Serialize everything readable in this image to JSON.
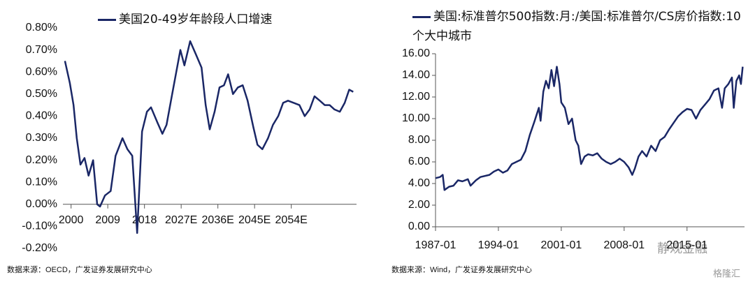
{
  "chart_data": [
    {
      "type": "line",
      "series": [
        {
          "name": "美国20-49岁年龄段人口增速",
          "color": "#1a2766",
          "x": [
            1998.5,
            1999.7,
            2000.6,
            2001.4,
            2002.3,
            2003.3,
            2004.3,
            2005.4,
            2006.4,
            2007.1,
            2008.3,
            2009.7,
            2010.9,
            2012.6,
            2013.8,
            2015.0,
            2016.2,
            2017.4,
            2018.6,
            2019.6,
            2021.2,
            2022.4,
            2023.4,
            2024.8,
            2026.8,
            2027.8,
            2029.2,
            2030.6,
            2032.0,
            2033.0,
            2034.0,
            2035.2,
            2036.4,
            2037.5,
            2038.5,
            2039.7,
            2040.9,
            2042.1,
            2043.3,
            2044.7,
            2045.7,
            2046.9,
            2048.3,
            2049.5,
            2050.8,
            2052.0,
            2053.2,
            2054.6,
            2056.0,
            2057.3,
            2058.5,
            2059.7,
            2061.0,
            2062.2,
            2063.4,
            2064.6,
            2065.9,
            2067.1,
            2068.2,
            2069.2
          ],
          "values": [
            0.65,
            0.55,
            0.45,
            0.3,
            0.18,
            0.21,
            0.13,
            0.2,
            0.0,
            -0.01,
            0.04,
            0.06,
            0.22,
            0.3,
            0.25,
            0.22,
            -0.13,
            0.33,
            0.42,
            0.44,
            0.37,
            0.32,
            0.36,
            0.5,
            0.7,
            0.63,
            0.74,
            0.68,
            0.62,
            0.45,
            0.34,
            0.42,
            0.53,
            0.54,
            0.59,
            0.5,
            0.53,
            0.54,
            0.47,
            0.35,
            0.27,
            0.25,
            0.3,
            0.36,
            0.4,
            0.46,
            0.47,
            0.46,
            0.45,
            0.4,
            0.43,
            0.49,
            0.47,
            0.45,
            0.45,
            0.43,
            0.42,
            0.46,
            0.52,
            0.51
          ]
        }
      ],
      "xlim": [
        1998,
        2070
      ],
      "xticks": [
        2000,
        2009,
        2018,
        {
          "value": 2027,
          "label": "2027E"
        },
        {
          "value": 2036,
          "label": "2036E"
        },
        {
          "value": 2045,
          "label": "2045E"
        },
        {
          "value": 2054,
          "label": "2054E"
        }
      ],
      "ylim": [
        -0.2,
        0.8
      ],
      "yticks": [
        {
          "value": -0.2,
          "label": "-0.20%"
        },
        {
          "value": -0.1,
          "label": "-0.10%"
        },
        {
          "value": 0,
          "label": "0.00%"
        },
        {
          "value": 0.1,
          "label": "0.10%"
        },
        {
          "value": 0.2,
          "label": "0.20%"
        },
        {
          "value": 0.3,
          "label": "0.30%"
        },
        {
          "value": 0.4,
          "label": "0.40%"
        },
        {
          "value": 0.5,
          "label": "0.50%"
        },
        {
          "value": 0.6,
          "label": "0.60%"
        },
        {
          "value": 0.7,
          "label": "0.70%"
        },
        {
          "value": 0.8,
          "label": "0.80%"
        }
      ],
      "source": "数据来源：OECD，广发证券发展研究中心"
    },
    {
      "type": "line",
      "series": [
        {
          "name": "美国:标准普尔500指数:月:/美国:标准普尔/CS房价指数:10个大中城市",
          "color": "#1a2766",
          "x": [
            1987.0,
            1987.5,
            1987.8,
            1988.0,
            1988.5,
            1989.0,
            1989.5,
            1990.0,
            1990.6,
            1990.9,
            1991.5,
            1992.0,
            1993.0,
            1993.5,
            1994.0,
            1994.5,
            1995.0,
            1995.5,
            1996.0,
            1996.5,
            1997.0,
            1997.5,
            1998.0,
            1998.5,
            1998.7,
            1999.0,
            1999.3,
            1999.6,
            1999.9,
            2000.2,
            2000.5,
            2000.8,
            2001.0,
            2001.4,
            2001.8,
            2002.2,
            2002.6,
            2002.9,
            2003.2,
            2003.6,
            2004.0,
            2004.5,
            2005.0,
            2005.5,
            2006.0,
            2006.5,
            2007.0,
            2007.5,
            2008.0,
            2008.5,
            2008.9,
            2009.2,
            2009.6,
            2010.0,
            2010.5,
            2011.0,
            2011.5,
            2012.0,
            2012.5,
            2013.0,
            2013.5,
            2014.0,
            2014.5,
            2015.0,
            2015.5,
            2016.0,
            2016.5,
            2017.0,
            2017.5,
            2018.0,
            2018.5,
            2018.9,
            2019.2,
            2019.6,
            2020.0,
            2020.2,
            2020.5,
            2020.8,
            2021.0,
            2021.2
          ],
          "values": [
            4.5,
            4.6,
            4.8,
            3.4,
            3.7,
            3.8,
            4.3,
            4.2,
            4.4,
            3.8,
            4.3,
            4.6,
            4.8,
            5.1,
            5.3,
            5.0,
            5.2,
            5.8,
            6.0,
            6.2,
            7.0,
            8.5,
            9.7,
            11.0,
            9.8,
            12.5,
            13.5,
            12.8,
            14.5,
            13.0,
            14.8,
            13.2,
            11.5,
            11.0,
            9.5,
            10.0,
            8.0,
            7.5,
            5.8,
            6.5,
            6.7,
            6.6,
            6.8,
            6.3,
            6.0,
            5.8,
            6.0,
            6.3,
            6.0,
            5.5,
            4.8,
            5.4,
            6.5,
            7.0,
            6.5,
            7.5,
            7.0,
            8.0,
            8.3,
            9.0,
            9.6,
            10.2,
            10.6,
            10.9,
            10.8,
            10.0,
            10.8,
            11.3,
            11.8,
            12.6,
            12.8,
            11.0,
            12.8,
            13.2,
            13.8,
            11.0,
            13.5,
            14.0,
            13.2,
            14.8
          ]
        }
      ],
      "xlim": [
        1987,
        2021.4
      ],
      "xticks": [
        {
          "value": 1987,
          "label": "1987-01"
        },
        {
          "value": 1994,
          "label": "1994-01"
        },
        {
          "value": 2001,
          "label": "2001-01"
        },
        {
          "value": 2008,
          "label": "2008-01"
        },
        {
          "value": 2015,
          "label": "2015-01"
        }
      ],
      "ylim": [
        0,
        16
      ],
      "yticks": [
        {
          "value": 0,
          "label": "0.00"
        },
        {
          "value": 2,
          "label": "2.00"
        },
        {
          "value": 4,
          "label": "4.00"
        },
        {
          "value": 6,
          "label": "6.00"
        },
        {
          "value": 8,
          "label": "8.00"
        },
        {
          "value": 10,
          "label": "10.00"
        },
        {
          "value": 12,
          "label": "12.00"
        },
        {
          "value": 14,
          "label": "14.00"
        },
        {
          "value": 16,
          "label": "16.00"
        }
      ],
      "source": "数据来源：Wind，广发证券发展研究中心"
    }
  ],
  "watermarks": [
    "静观金融",
    "格隆汇"
  ]
}
